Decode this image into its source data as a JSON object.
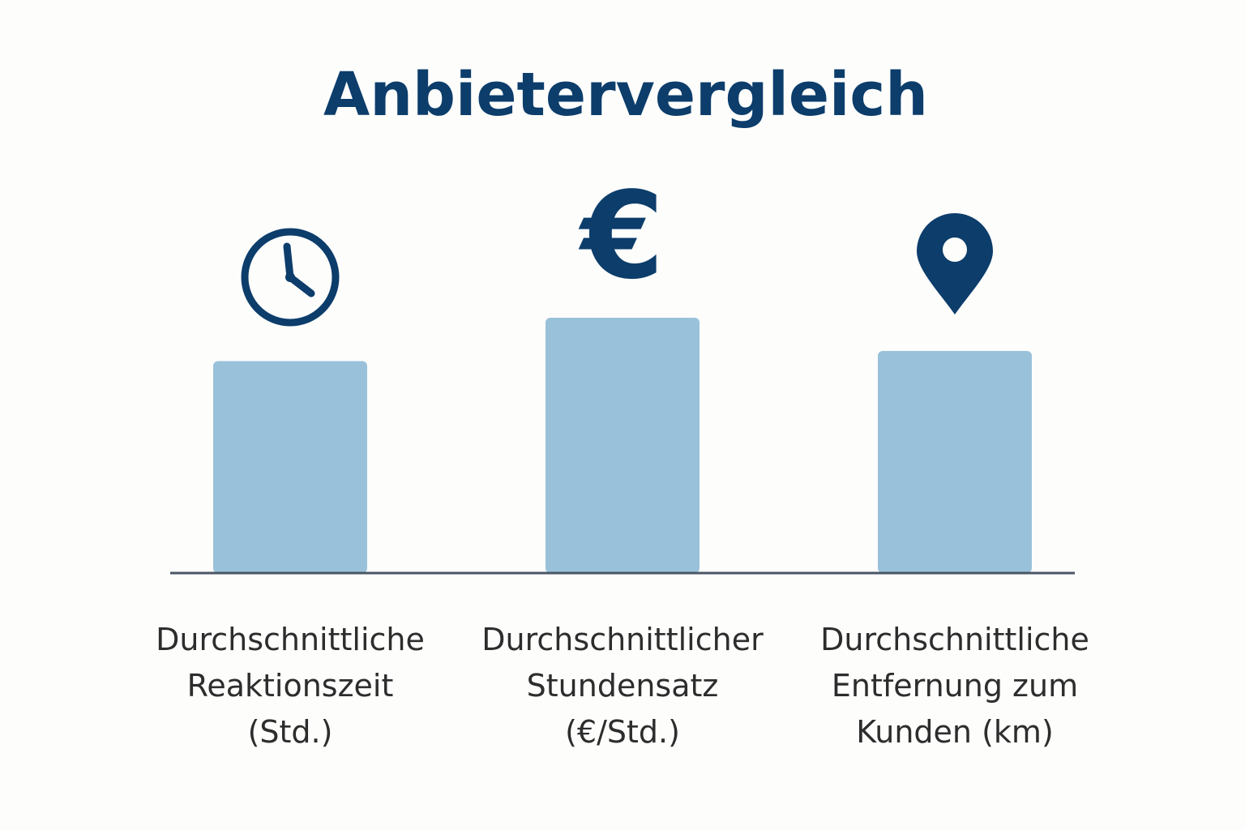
{
  "chart_data": {
    "type": "bar",
    "title": "Anbietervergleich",
    "categories": [
      "Durchschnittliche Reaktionszeit (Std.)",
      "Durchschnittlicher Stundensatz (€/Std.)",
      "Durchschnittliche Entfernung zum Kunden (km)"
    ],
    "category_label_lines": [
      [
        "Durchschnittliche",
        "Reaktionszeit",
        "(Std.)"
      ],
      [
        "Durchschnittlicher",
        "Stundensatz",
        "(€/Std.)"
      ],
      [
        "Durchschnittliche",
        "Entfernung zum",
        "Kunden (km)"
      ]
    ],
    "relative_values": [
      0.83,
      1.0,
      0.87
    ],
    "icons": [
      "clock-icon",
      "euro-icon",
      "location-pin-icon"
    ],
    "ylim": [
      0,
      1
    ],
    "grid": false,
    "legend": "none",
    "colors": {
      "bar": "#99c1da",
      "icon": "#0c3d6b",
      "title": "#0c3d6b",
      "baseline": "#4a5663",
      "label": "#2d2d2d"
    }
  }
}
